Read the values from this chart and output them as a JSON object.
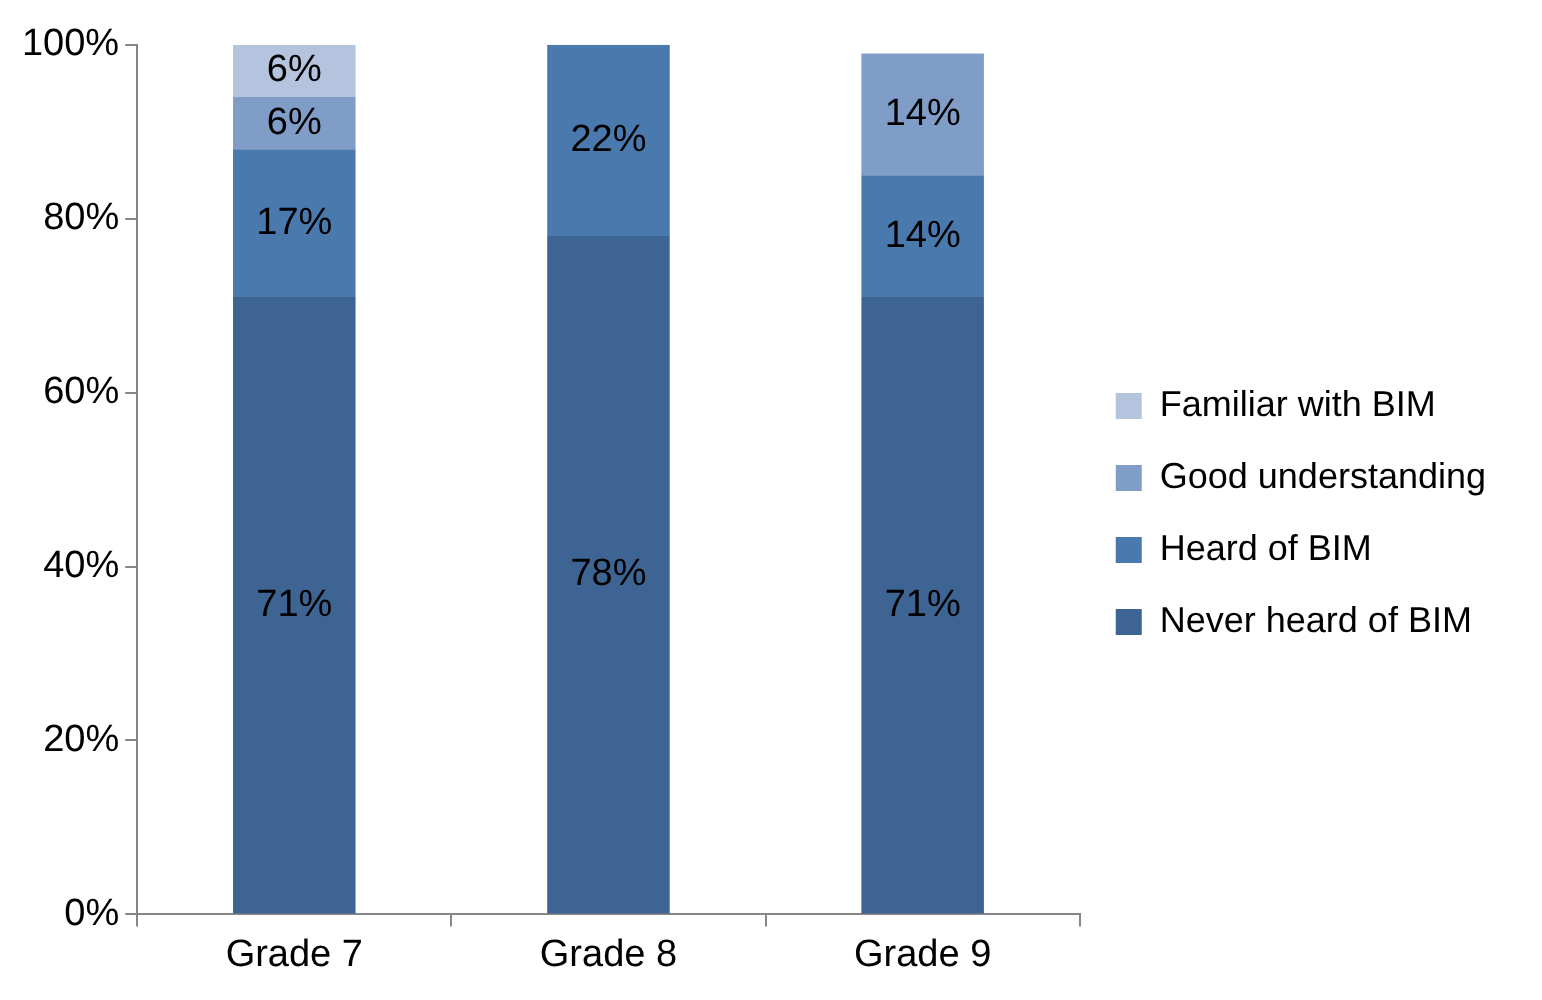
{
  "chart_data": {
    "type": "bar",
    "stacked": true,
    "categories": [
      "Grade 7",
      "Grade 8",
      "Grade 9"
    ],
    "series": [
      {
        "name": "Never heard of BIM",
        "color": "#3e6494",
        "values": [
          71,
          78,
          71
        ],
        "value_labels": [
          "71%",
          "78%",
          "71%"
        ]
      },
      {
        "name": "Heard of BIM",
        "color": "#4a79ae",
        "values": [
          17,
          22,
          14
        ],
        "value_labels": [
          "17%",
          "22%",
          "14%"
        ]
      },
      {
        "name": "Good understanding",
        "color": "#7f9dc7",
        "values": [
          6,
          null,
          14
        ],
        "value_labels": [
          "6%",
          null,
          "14%"
        ]
      },
      {
        "name": "Familiar with BIM",
        "color": "#b4c4df",
        "values": [
          6,
          null,
          null
        ],
        "value_labels": [
          "6%",
          null,
          null
        ]
      }
    ],
    "ylim": [
      0,
      100
    ],
    "yticks": [
      {
        "value": 0,
        "label": "0%"
      },
      {
        "value": 20,
        "label": "20%"
      },
      {
        "value": 40,
        "label": "40%"
      },
      {
        "value": 60,
        "label": "60%"
      },
      {
        "value": 80,
        "label": "80%"
      },
      {
        "value": 100,
        "label": "100%"
      }
    ],
    "grid": false,
    "legend": "right"
  }
}
